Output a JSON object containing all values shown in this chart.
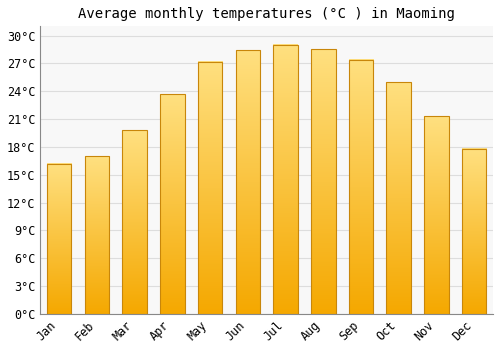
{
  "title": "Average monthly temperatures (°C ) in Maoming",
  "months": [
    "Jan",
    "Feb",
    "Mar",
    "Apr",
    "May",
    "Jun",
    "Jul",
    "Aug",
    "Sep",
    "Oct",
    "Nov",
    "Dec"
  ],
  "values": [
    16.2,
    17.0,
    19.8,
    23.7,
    27.2,
    28.4,
    29.0,
    28.5,
    27.4,
    25.0,
    21.3,
    17.8
  ],
  "bar_color_bottom": "#F5A800",
  "bar_color_top": "#FFE080",
  "bar_edge_color": "#C8860A",
  "background_color": "#FFFFFF",
  "plot_bg_color": "#F8F8F8",
  "grid_color": "#DDDDDD",
  "title_fontsize": 10,
  "tick_fontsize": 8.5,
  "ylim": [
    0,
    31
  ],
  "yticks": [
    0,
    3,
    6,
    9,
    12,
    15,
    18,
    21,
    24,
    27,
    30
  ]
}
